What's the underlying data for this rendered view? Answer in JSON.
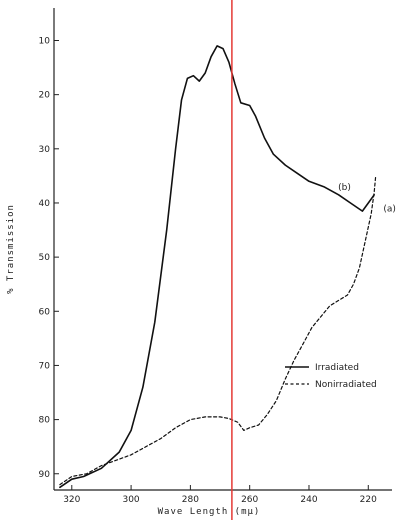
{
  "chart_data": {
    "type": "line",
    "xlabel": "Wave Length (mμ)",
    "ylabel": "% Transmission",
    "x_reversed": true,
    "xlim": [
      326,
      212
    ],
    "ylim": [
      4,
      93
    ],
    "x_ticks": [
      320,
      300,
      280,
      260,
      240,
      220
    ],
    "y_ticks": [
      10,
      20,
      30,
      40,
      50,
      60,
      70,
      80,
      90
    ],
    "series": [
      {
        "name": "Irradiated",
        "style": "solid",
        "annotation": "(b)",
        "points": [
          [
            324,
            92.5
          ],
          [
            320,
            91
          ],
          [
            316,
            90.5
          ],
          [
            310,
            89
          ],
          [
            304,
            86
          ],
          [
            300,
            82
          ],
          [
            296,
            74
          ],
          [
            292,
            62
          ],
          [
            288,
            45
          ],
          [
            285,
            30
          ],
          [
            283,
            21
          ],
          [
            281,
            17
          ],
          [
            279,
            16.5
          ],
          [
            277,
            17.5
          ],
          [
            275,
            16
          ],
          [
            273,
            13
          ],
          [
            271,
            11
          ],
          [
            269,
            11.5
          ],
          [
            267,
            14
          ],
          [
            265,
            18
          ],
          [
            263,
            21.5
          ],
          [
            260,
            22
          ],
          [
            258,
            24
          ],
          [
            255,
            28
          ],
          [
            252,
            31
          ],
          [
            248,
            33
          ],
          [
            244,
            34.5
          ],
          [
            240,
            36
          ],
          [
            235,
            37
          ],
          [
            230,
            38.5
          ],
          [
            226,
            40
          ],
          [
            222,
            41.5
          ],
          [
            220,
            40
          ],
          [
            218,
            38.5
          ]
        ]
      },
      {
        "name": "Nonirradiated",
        "style": "dashed",
        "annotation": "(a)",
        "points": [
          [
            324,
            92
          ],
          [
            320,
            90.5
          ],
          [
            315,
            90
          ],
          [
            310,
            88.5
          ],
          [
            305,
            87.5
          ],
          [
            300,
            86.5
          ],
          [
            295,
            85
          ],
          [
            290,
            83.5
          ],
          [
            285,
            81.5
          ],
          [
            280,
            80
          ],
          [
            275,
            79.5
          ],
          [
            270,
            79.5
          ],
          [
            267,
            79.8
          ],
          [
            264,
            80.5
          ],
          [
            262,
            82
          ],
          [
            260,
            81.5
          ],
          [
            257,
            81
          ],
          [
            254,
            79
          ],
          [
            251,
            76.5
          ],
          [
            248,
            72.5
          ],
          [
            245,
            69
          ],
          [
            242,
            66
          ],
          [
            239,
            63
          ],
          [
            236,
            61
          ],
          [
            233,
            59
          ],
          [
            230,
            58
          ],
          [
            227,
            57
          ],
          [
            225,
            55
          ],
          [
            223,
            52
          ],
          [
            221,
            47
          ],
          [
            219,
            42
          ],
          [
            218,
            38
          ],
          [
            217.5,
            35
          ]
        ]
      }
    ],
    "marker_line_x": 266,
    "marker_line_color": "#e53935",
    "legend_position": "lower-right",
    "grid": false
  }
}
